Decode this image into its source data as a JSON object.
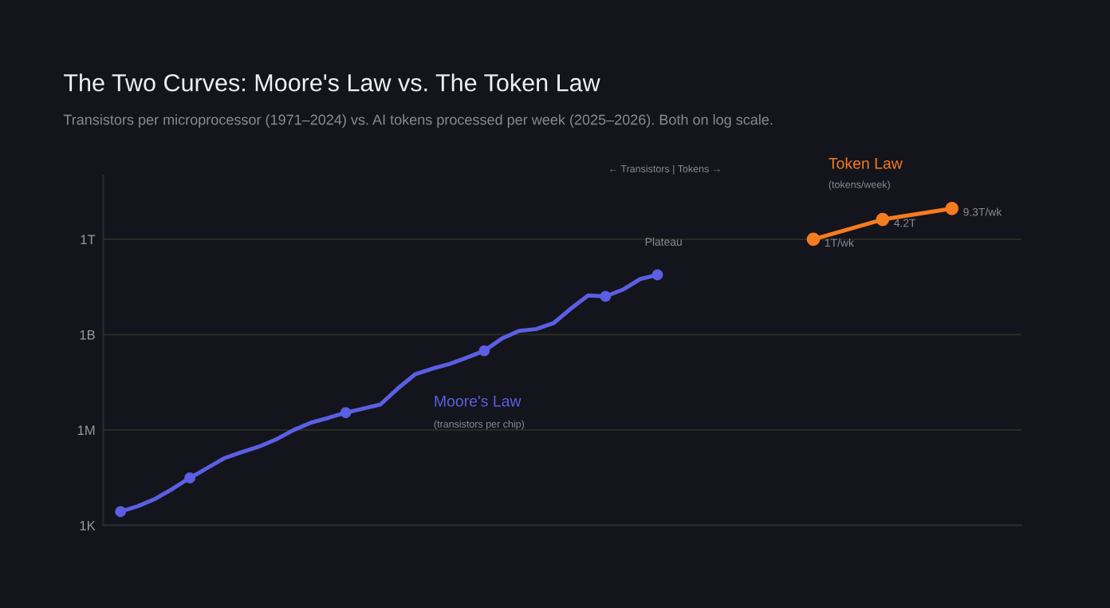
{
  "chart_data": {
    "type": "line",
    "title": "The Two Curves: Moore's Law vs. The Token Law",
    "subtitle": "Transistors per microprocessor (1971–2024) vs. AI tokens processed per week (2025–2026). Both on log scale.",
    "categories": [
      null,
      null,
      null,
      null,
      null,
      null,
      null,
      null,
      null,
      null,
      null,
      null,
      null,
      null,
      null,
      null,
      null,
      null,
      null,
      null,
      null,
      null,
      null,
      null,
      null,
      null,
      null,
      null,
      null,
      null,
      null,
      null,
      null,
      null,
      null,
      null,
      null,
      null,
      null,
      null,
      null,
      null,
      null,
      null,
      null,
      null,
      null,
      null,
      null
    ],
    "series": [
      {
        "name": "Moore's Law",
        "color": "#5b5fe3",
        "marker": "none",
        "values": [
          2700,
          4000,
          6800,
          14000,
          31000,
          63000,
          130000,
          200000,
          300000,
          510000,
          1000000,
          1700000,
          2400000,
          3500000,
          4700000,
          6300000,
          20000000,
          56000000,
          85000000,
          120000000,
          190000000,
          310000000,
          740000000,
          1300000000,
          1500000000,
          2300000000,
          6600000000,
          17000000000,
          16000000000,
          26000000000,
          56000000000,
          76000000000,
          null,
          null,
          null,
          null,
          null,
          null,
          null,
          null,
          null,
          null,
          null,
          null,
          null,
          null,
          null,
          null,
          null
        ]
      },
      {
        "type": "scatter",
        "color": "#5b5fe3",
        "marker": "circle",
        "values": [
          2700,
          null,
          null,
          null,
          31000,
          null,
          null,
          null,
          null,
          null,
          null,
          null,
          null,
          3500000,
          null,
          null,
          null,
          null,
          null,
          null,
          null,
          310000000,
          null,
          null,
          null,
          null,
          null,
          null,
          16000000000,
          null,
          null,
          76000000000,
          null,
          null,
          null,
          null,
          null,
          null,
          null,
          null,
          null,
          null,
          null,
          null,
          null,
          null,
          null,
          null,
          null
        ]
      },
      {
        "name": "Token Law",
        "color": "#f57c1f",
        "marker": "circle",
        "values": [
          null,
          null,
          null,
          null,
          null,
          null,
          null,
          null,
          null,
          null,
          null,
          null,
          null,
          null,
          null,
          null,
          null,
          null,
          null,
          null,
          null,
          null,
          null,
          null,
          null,
          null,
          null,
          null,
          null,
          null,
          null,
          null,
          null,
          null,
          null,
          null,
          null,
          null,
          null,
          null,
          1000000000000,
          null,
          null,
          null,
          4200000000000,
          null,
          null,
          null,
          9300000000000
        ],
        "value_labels": [
          null,
          null,
          null,
          null,
          null,
          null,
          null,
          null,
          null,
          null,
          null,
          null,
          null,
          null,
          null,
          null,
          null,
          null,
          null,
          null,
          null,
          null,
          null,
          null,
          null,
          null,
          null,
          null,
          null,
          null,
          null,
          null,
          null,
          null,
          null,
          null,
          null,
          null,
          null,
          null,
          "1T/wk",
          null,
          null,
          null,
          "4.2T",
          null,
          null,
          null,
          "9.3T/wk"
        ]
      }
    ],
    "log": true,
    "ylim": [
      1000,
      100000000000000
    ],
    "yticks": [
      {
        "value": 1000,
        "label": "1K"
      },
      {
        "value": 1000000,
        "label": "1M"
      },
      {
        "value": 1000000000,
        "label": "1B"
      },
      {
        "value": 1000000000000,
        "label": "1T"
      }
    ],
    "tick_labels": "y",
    "grid": "y",
    "legend": false,
    "line_style": "solid",
    "annotations": [
      "← Transistors | Tokens →",
      "(transistors per chip)",
      "(tokens/week)",
      "Plateau"
    ]
  }
}
